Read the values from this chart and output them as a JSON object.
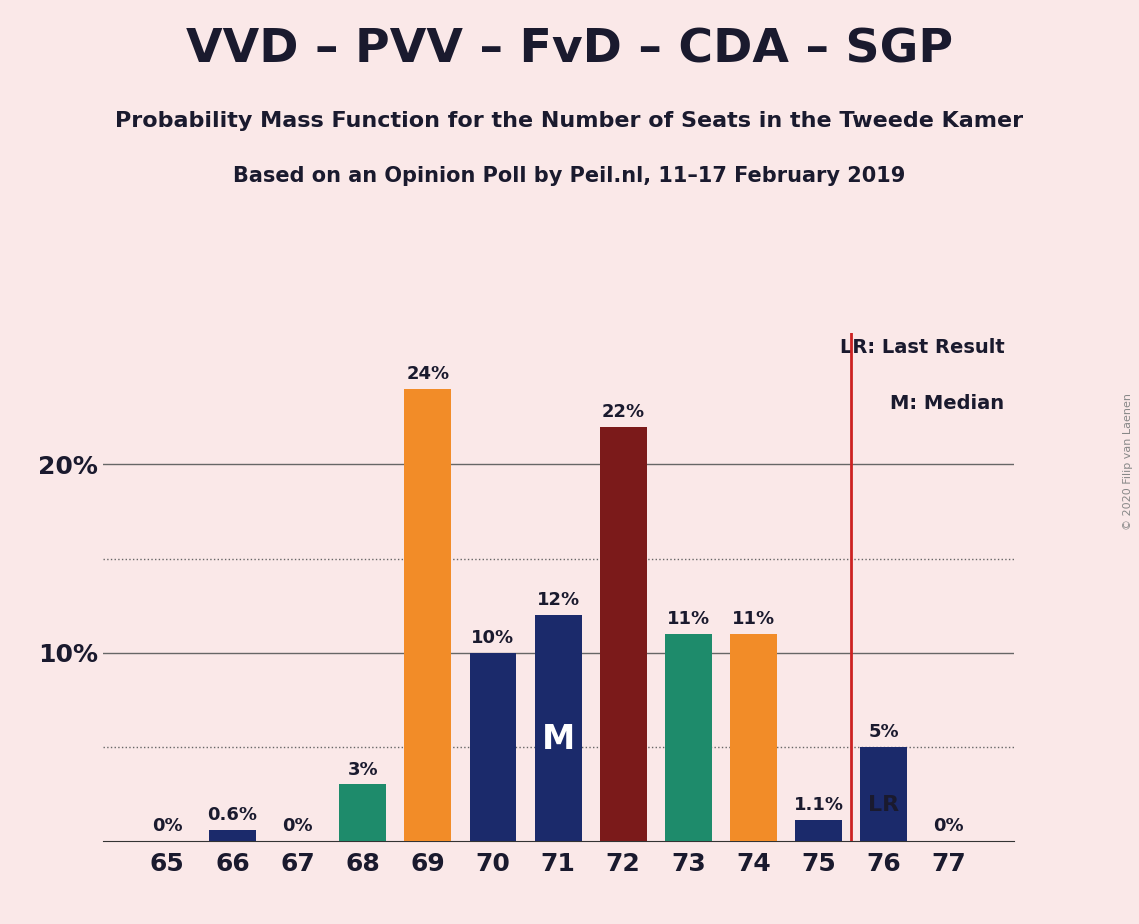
{
  "title": "VVD – PVV – FvD – CDA – SGP",
  "subtitle1": "Probability Mass Function for the Number of Seats in the Tweede Kamer",
  "subtitle2": "Based on an Opinion Poll by Peil.nl, 11–17 February 2019",
  "copyright": "© 2020 Filip van Laenen",
  "categories": [
    65,
    66,
    67,
    68,
    69,
    70,
    71,
    72,
    73,
    74,
    75,
    76,
    77
  ],
  "values": [
    0.0,
    0.6,
    0.0,
    3.0,
    24.0,
    10.0,
    12.0,
    22.0,
    11.0,
    11.0,
    1.1,
    5.0,
    0.0
  ],
  "bar_colors": [
    "#F28C28",
    "#1B2A6B",
    "#1B2A6B",
    "#1E8B6B",
    "#F28C28",
    "#1B2A6B",
    "#1B2A6B",
    "#7B1A1A",
    "#1E8B6B",
    "#F28C28",
    "#1B2A6B",
    "#1B2A6B",
    "#1B2A6B"
  ],
  "labels": [
    "0%",
    "0.6%",
    "0%",
    "3%",
    "24%",
    "10%",
    "12%",
    "22%",
    "11%",
    "11%",
    "1.1%",
    "5%",
    "0%"
  ],
  "median_bar_index": 6,
  "median_label": "M",
  "lr_bar_index": 11,
  "lr_label": "LR",
  "legend_lr": "LR: Last Result",
  "legend_m": "M: Median",
  "background_color": "#FAE8E8",
  "ylim": [
    0,
    27
  ],
  "dotted_lines": [
    5,
    15
  ],
  "solid_lines": [
    10,
    20
  ],
  "lr_line_color": "#cc2222",
  "label_fontsize": 13,
  "tick_fontsize": 18,
  "title_fontsize": 34,
  "subtitle1_fontsize": 16,
  "subtitle2_fontsize": 15
}
